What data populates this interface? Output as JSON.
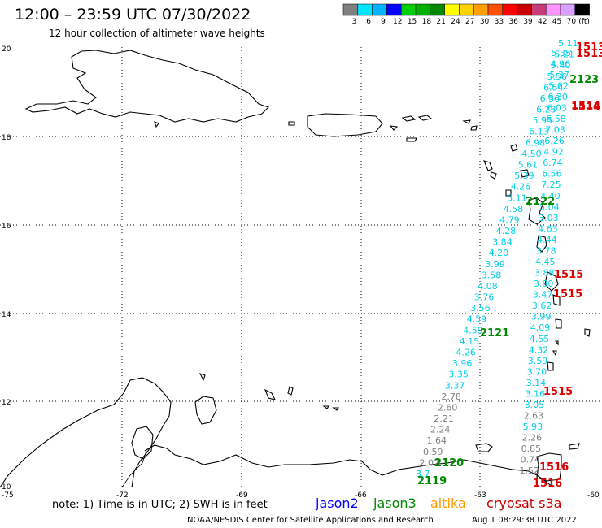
{
  "header": {
    "title": "12:00 – 23:59 UTC 07/30/2022",
    "subtitle": "12 hour collection of altimeter wave heights"
  },
  "legend": {
    "colors": [
      "#7f7f7f",
      "#00e5ff",
      "#00b4ff",
      "#0000ff",
      "#00d000",
      "#00b000",
      "#008800",
      "#ffff00",
      "#ffd200",
      "#ffa000",
      "#ff5000",
      "#ff0000",
      "#c80000",
      "#c83c78",
      "#ff96ff",
      "#d8a0ff",
      "#000000"
    ],
    "labels": [
      "3",
      "6",
      "9",
      "12",
      "15",
      "18",
      "21",
      "24",
      "27",
      "30",
      "33",
      "36",
      "39",
      "42",
      "45",
      "70",
      "(ft)"
    ]
  },
  "axes": {
    "lat_labels": [
      "20",
      "18",
      "16",
      "14",
      "12",
      "10"
    ],
    "lon_labels": [
      "-75",
      "-72",
      "-69",
      "-66",
      "-63",
      "-60"
    ]
  },
  "track_right": [
    {
      "v": "5.11",
      "c": "cyan"
    },
    {
      "v": "5.35",
      "c": "cyan"
    },
    {
      "v": "5.21",
      "c": "cyan"
    },
    {
      "v": "4.96",
      "c": "cyan"
    },
    {
      "v": "5.40",
      "c": "cyan"
    },
    {
      "v": "5.37",
      "c": "cyan"
    },
    {
      "v": "5.56",
      "c": "cyan"
    },
    {
      "v": "5.62",
      "c": "cyan"
    },
    {
      "v": "6.54",
      "c": "cyan"
    },
    {
      "v": "6.30",
      "c": "cyan"
    },
    {
      "v": "6.36",
      "c": "cyan"
    },
    {
      "v": "6.03",
      "c": "cyan"
    },
    {
      "v": "6.23",
      "c": "cyan"
    },
    {
      "v": "6.58",
      "c": "cyan"
    },
    {
      "v": "5.95",
      "c": "cyan"
    },
    {
      "v": "7.03",
      "c": "cyan"
    },
    {
      "v": "6.13",
      "c": "cyan"
    },
    {
      "v": "6.26",
      "c": "cyan"
    },
    {
      "v": "6.98",
      "c": "cyan"
    },
    {
      "v": "4.92",
      "c": "cyan"
    },
    {
      "v": "4.50",
      "c": "cyan"
    },
    {
      "v": "6.74",
      "c": "cyan"
    },
    {
      "v": "5.61",
      "c": "cyan"
    },
    {
      "v": "6.56",
      "c": "cyan"
    },
    {
      "v": "5.39",
      "c": "cyan"
    },
    {
      "v": "7.25",
      "c": "cyan"
    },
    {
      "v": "4.26",
      "c": "cyan"
    },
    {
      "v": "4.40",
      "c": "cyan"
    },
    {
      "v": "5.11",
      "c": "cyan"
    },
    {
      "v": "5.04",
      "c": "cyan"
    },
    {
      "v": "4.58",
      "c": "cyan"
    },
    {
      "v": "3.03",
      "c": "cyan"
    },
    {
      "v": "4.79",
      "c": "cyan"
    },
    {
      "v": "4.63",
      "c": "cyan"
    },
    {
      "v": "4.28",
      "c": "cyan"
    },
    {
      "v": "4.44",
      "c": "cyan"
    },
    {
      "v": "3.84",
      "c": "cyan"
    },
    {
      "v": "3.78",
      "c": "cyan"
    },
    {
      "v": "4.20",
      "c": "cyan"
    },
    {
      "v": "4.45",
      "c": "cyan"
    },
    {
      "v": "3.99",
      "c": "cyan"
    },
    {
      "v": "3.88",
      "c": "cyan"
    },
    {
      "v": "3.58",
      "c": "cyan"
    },
    {
      "v": "3.80",
      "c": "cyan"
    },
    {
      "v": "4.08",
      "c": "cyan"
    },
    {
      "v": "3.47",
      "c": "cyan"
    },
    {
      "v": "3.76",
      "c": "cyan"
    },
    {
      "v": "3.62",
      "c": "cyan"
    },
    {
      "v": "3.56",
      "c": "cyan"
    },
    {
      "v": "3.99",
      "c": "cyan"
    },
    {
      "v": "4.59",
      "c": "cyan"
    },
    {
      "v": "4.09",
      "c": "cyan"
    },
    {
      "v": "4.59",
      "c": "cyan"
    },
    {
      "v": "4.55",
      "c": "cyan"
    },
    {
      "v": "4.15",
      "c": "cyan"
    },
    {
      "v": "4.32",
      "c": "cyan"
    },
    {
      "v": "4.26",
      "c": "cyan"
    },
    {
      "v": "3.59",
      "c": "cyan"
    },
    {
      "v": "3.96",
      "c": "cyan"
    },
    {
      "v": "3.70",
      "c": "cyan"
    },
    {
      "v": "3.35",
      "c": "cyan"
    },
    {
      "v": "3.14",
      "c": "cyan"
    },
    {
      "v": "3.37",
      "c": "cyan"
    },
    {
      "v": "3.16",
      "c": "cyan"
    },
    {
      "v": "2.78",
      "c": "gray"
    },
    {
      "v": "3.05",
      "c": "cyan"
    },
    {
      "v": "2.60",
      "c": "gray"
    },
    {
      "v": "2.63",
      "c": "gray"
    },
    {
      "v": "2.21",
      "c": "gray"
    },
    {
      "v": "5.93",
      "c": "cyan"
    },
    {
      "v": "2.24",
      "c": "gray"
    },
    {
      "v": "2.26",
      "c": "gray"
    },
    {
      "v": "1.64",
      "c": "gray"
    },
    {
      "v": "0.85",
      "c": "gray"
    },
    {
      "v": "0.59",
      "c": "gray"
    },
    {
      "v": "0.74",
      "c": "gray"
    },
    {
      "v": "2.02",
      "c": "gray"
    },
    {
      "v": "1.52",
      "c": "gray"
    },
    {
      "v": "3.7",
      "c": "cyan"
    }
  ],
  "time_labels": [
    {
      "t": "1513",
      "c": "red"
    },
    {
      "t": "1513",
      "c": "red"
    },
    {
      "t": "2123",
      "c": "green"
    },
    {
      "t": "1514",
      "c": "red"
    },
    {
      "t": "1514",
      "c": "red"
    },
    {
      "t": "2122",
      "c": "green"
    },
    {
      "t": "1515",
      "c": "red"
    },
    {
      "t": "1515",
      "c": "red"
    },
    {
      "t": "2121",
      "c": "green"
    },
    {
      "t": "1515",
      "c": "red"
    },
    {
      "t": "2120",
      "c": "green"
    },
    {
      "t": "2119",
      "c": "green"
    },
    {
      "t": "1516",
      "c": "red"
    },
    {
      "t": "1516",
      "c": "red"
    }
  ],
  "footer": {
    "note": "note: 1) Time is in UTC; 2) SWH is in feet",
    "sat1": "jason2",
    "sat2": "jason3",
    "sat3": "altika",
    "sat4": "cryosat s3a",
    "credit": "NOAA/NESDIS Center for Satellite Applications and Research",
    "timestamp": "Aug  1 08:29:38 UTC 2022",
    "sat_colors": {
      "jason2": "#0000ff",
      "jason3": "#008800",
      "altika": "#ff9900",
      "cryosat": "#cc0000"
    }
  },
  "colors": {
    "cyan": "#00d0e8",
    "gray": "#7f7f7f",
    "green": "#008800",
    "red": "#dd0000"
  }
}
